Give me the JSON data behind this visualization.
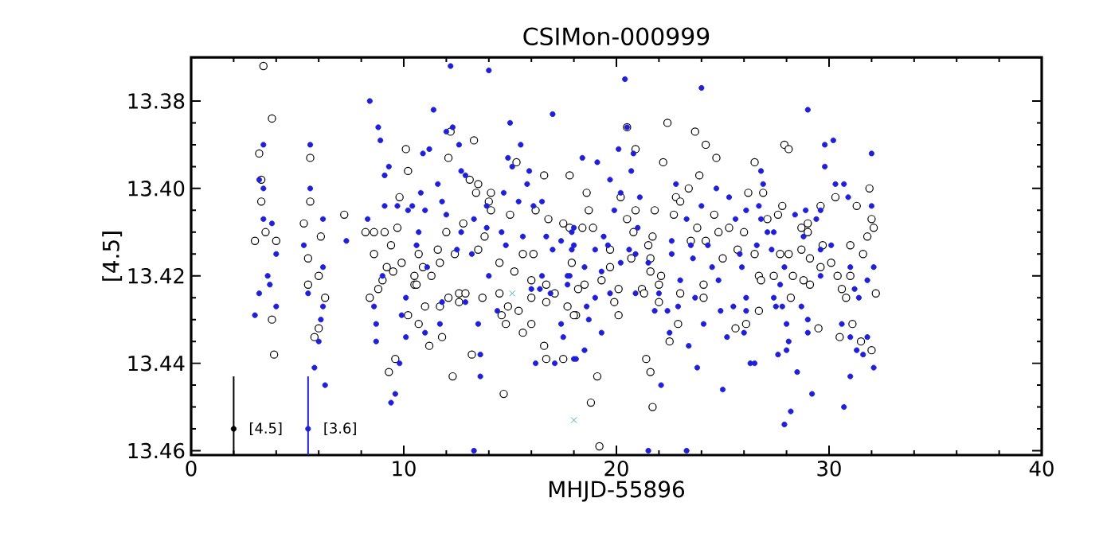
{
  "chart_data": {
    "type": "scatter",
    "title": "CSIMon-000999",
    "xlabel": "MHJD-55896",
    "ylabel": "[4.5]",
    "xlim": [
      0,
      40
    ],
    "ylim": [
      13.461,
      13.37
    ],
    "xticks": [
      0,
      10,
      20,
      30,
      40
    ],
    "yticks": [
      {
        "value": 13.38,
        "label": "13.38"
      },
      {
        "value": 13.4,
        "label": "13.40"
      },
      {
        "value": 13.42,
        "label": "13.42"
      },
      {
        "value": 13.44,
        "label": "13.44"
      },
      {
        "value": 13.46,
        "label": "13.46"
      }
    ],
    "marker": "circle",
    "grid": false,
    "legend": false,
    "series": [
      {
        "color": "#000000",
        "x": [
          3.4,
          3.8,
          3.2,
          3.3,
          3.3,
          5.6,
          5.6,
          5.3,
          3.5,
          3.0,
          4.0,
          6.1,
          5.5,
          6.0,
          5.5,
          6.3,
          3.8,
          6.0,
          5.8,
          3.9,
          7.2,
          10.1,
          10.2,
          9.8,
          8.2,
          8.6,
          9.1,
          9.7,
          8.6,
          9.4,
          9.2,
          9.9,
          9.5,
          9.0,
          10.5,
          8.4,
          8.8,
          10.2,
          10.7,
          9.6,
          9.3,
          12.2,
          13.3,
          12.1,
          13.1,
          13.5,
          13.4,
          14.1,
          14.0,
          14.1,
          15.0,
          15.3,
          16.6,
          17.8,
          16.2,
          16.8,
          17.5,
          12.8,
          12.0,
          13.8,
          10.7,
          11.6,
          12.4,
          13.5,
          14.5,
          11.7,
          10.9,
          11.3,
          10.5,
          15.6,
          16.1,
          15.2,
          16.0,
          16.7,
          10.6,
          12.6,
          12.9,
          13.7,
          12.1,
          12.6,
          11.0,
          11.7,
          14.5,
          14.9,
          16.0,
          16.7,
          17.1,
          17.7,
          18.1,
          15.4,
          14.6,
          14.8,
          16.0,
          15.6,
          11.8,
          11.2,
          13.2,
          16.6,
          16.7,
          17.5,
          12.3,
          14.7,
          20.5,
          22.4,
          23.7,
          24.2,
          24.7,
          20.9,
          22.2,
          23.9,
          23.4,
          18.6,
          20.2,
          22.8,
          23.0,
          18.7,
          20.9,
          21.8,
          22.7,
          24.6,
          20.5,
          18.4,
          18.9,
          20.8,
          23.8,
          25.3,
          24.8,
          17.8,
          21.7,
          23.5,
          24.2,
          21.5,
          19.7,
          20.7,
          21.6,
          25.0,
          17.9,
          19.7,
          21.6,
          22.1,
          18.5,
          24.1,
          19.3,
          20.1,
          21.2,
          22.0,
          18.2,
          21.3,
          23.0,
          24.1,
          19.9,
          22.0,
          18.0,
          20.1,
          25.6,
          22.9,
          22.5,
          21.4,
          19.1,
          21.6,
          18.8,
          21.7,
          19.2,
          27.9,
          28.1,
          26.5,
          26.2,
          26.9,
          27.8,
          27.6,
          30.3,
          29.6,
          31.3,
          31.9,
          32.0,
          32.1,
          31.8,
          31.6,
          31.0,
          29.0,
          28.7,
          29.0,
          26.0,
          27.1,
          25.7,
          26.5,
          27.7,
          28.1,
          28.7,
          29.7,
          29.1,
          29.6,
          30.1,
          30.4,
          31.0,
          26.7,
          26.8,
          27.4,
          28.3,
          28.8,
          29.1,
          30.6,
          30.8,
          32.2,
          28.2,
          26.7,
          26.1,
          31.1,
          29.5,
          30.5,
          31.5,
          32.0
        ],
        "values": [
          13.372,
          13.384,
          13.392,
          13.398,
          13.403,
          13.393,
          13.403,
          13.408,
          13.41,
          13.412,
          13.412,
          13.411,
          13.416,
          13.42,
          13.422,
          13.425,
          13.43,
          13.432,
          13.434,
          13.438,
          13.406,
          13.391,
          13.396,
          13.402,
          13.41,
          13.41,
          13.41,
          13.409,
          13.415,
          13.413,
          13.418,
          13.417,
          13.419,
          13.421,
          13.422,
          13.425,
          13.423,
          13.429,
          13.431,
          13.439,
          13.442,
          13.387,
          13.389,
          13.393,
          13.398,
          13.399,
          13.401,
          13.401,
          13.403,
          13.405,
          13.406,
          13.394,
          13.397,
          13.397,
          13.405,
          13.407,
          13.408,
          13.408,
          13.41,
          13.411,
          13.415,
          13.414,
          13.415,
          13.414,
          13.417,
          13.417,
          13.418,
          13.42,
          13.42,
          13.415,
          13.415,
          13.419,
          13.421,
          13.422,
          13.422,
          13.424,
          13.424,
          13.425,
          13.425,
          13.426,
          13.427,
          13.427,
          13.424,
          13.427,
          13.425,
          13.426,
          13.424,
          13.427,
          13.429,
          13.428,
          13.429,
          13.431,
          13.431,
          13.433,
          13.434,
          13.436,
          13.438,
          13.436,
          13.439,
          13.439,
          13.443,
          13.447,
          13.386,
          13.385,
          13.387,
          13.39,
          13.393,
          13.391,
          13.394,
          13.397,
          13.4,
          13.401,
          13.402,
          13.402,
          13.403,
          13.405,
          13.405,
          13.405,
          13.406,
          13.406,
          13.407,
          13.409,
          13.409,
          13.41,
          13.409,
          13.409,
          13.41,
          13.409,
          13.411,
          13.412,
          13.412,
          13.413,
          13.414,
          13.416,
          13.416,
          13.416,
          13.417,
          13.418,
          13.419,
          13.42,
          13.422,
          13.422,
          13.421,
          13.423,
          13.423,
          13.422,
          13.423,
          13.424,
          13.424,
          13.425,
          13.426,
          13.426,
          13.429,
          13.429,
          13.432,
          13.431,
          13.435,
          13.439,
          13.443,
          13.442,
          13.449,
          13.45,
          13.459,
          13.39,
          13.391,
          13.394,
          13.401,
          13.401,
          13.404,
          13.406,
          13.402,
          13.404,
          13.404,
          13.4,
          13.407,
          13.409,
          13.411,
          13.415,
          13.413,
          13.408,
          13.409,
          13.41,
          13.41,
          13.407,
          13.414,
          13.415,
          13.415,
          13.415,
          13.414,
          13.413,
          13.416,
          13.418,
          13.417,
          13.42,
          13.42,
          13.42,
          13.421,
          13.42,
          13.42,
          13.421,
          13.422,
          13.423,
          13.425,
          13.424,
          13.425,
          13.428,
          13.431,
          13.431,
          13.432,
          13.434,
          13.435,
          13.437
        ]
      },
      {
        "color": "#1f1fd8",
        "x": [
          3.4,
          3.2,
          3.4,
          3.4,
          3.8,
          4.0,
          3.6,
          3.7,
          3.2,
          4.0,
          3.0,
          5.6,
          5.6,
          6.2,
          5.3,
          6.2,
          5.5,
          6.1,
          6.2,
          6.0,
          5.8,
          6.3,
          7.3,
          8.4,
          8.8,
          8.9,
          9.3,
          9.1,
          9.1,
          9.7,
          10.2,
          8.3,
          9.0,
          8.6,
          8.7,
          8.7,
          10.1,
          9.9,
          10.1,
          9.8,
          9.6,
          9.4,
          12.2,
          14.0,
          11.4,
          15.0,
          17.0,
          12.3,
          12.0,
          12.6,
          11.2,
          10.9,
          14.9,
          15.5,
          15.1,
          15.9,
          12.7,
          12.9,
          11.6,
          10.8,
          14.7,
          15.8,
          11.8,
          10.4,
          11.0,
          12.0,
          13.9,
          15.4,
          16.1,
          16.5,
          13.3,
          13.9,
          10.7,
          12.7,
          14.6,
          18.0,
          16.7,
          15.6,
          10.6,
          12.5,
          13.2,
          14.8,
          17.4,
          17.0,
          17.9,
          11.1,
          14.0,
          16.5,
          17.7,
          16.0,
          16.4,
          16.9,
          17.7,
          11.8,
          12.9,
          14.4,
          11.0,
          11.7,
          13.5,
          17.4,
          17.5,
          13.6,
          16.2,
          17.1,
          18.0,
          13.6,
          13.3,
          20.4,
          24.0,
          20.5,
          20.1,
          20.8,
          18.4,
          19.1,
          20.7,
          19.7,
          20.2,
          21.1,
          22.8,
          24.7,
          25.3,
          24.0,
          19.9,
          23.3,
          25.6,
          17.9,
          19.4,
          19.6,
          21.0,
          22.6,
          18.0,
          19.0,
          20.6,
          20.9,
          23.5,
          24.3,
          18.5,
          20.2,
          21.5,
          22.6,
          23.6,
          24.5,
          17.8,
          19.3,
          23.0,
          24.8,
          19.0,
          19.7,
          20.9,
          22.0,
          23.7,
          18.6,
          18.7,
          21.8,
          22.4,
          22.9,
          24.9,
          25.5,
          24.1,
          25.2,
          19.3,
          22.5,
          18.5,
          18.1,
          23.4,
          23.8,
          22.1,
          25.0,
          21.5,
          23.3,
          29.0,
          29.8,
          30.2,
          32.0,
          29.8,
          26.8,
          26.9,
          30.7,
          30.3,
          30.9,
          32.0,
          26.1,
          26.7,
          29.6,
          28.9,
          26.8,
          28.4,
          27.1,
          27.4,
          28.8,
          29.4,
          25.8,
          26.6,
          27.3,
          30.1,
          29.6,
          32.1,
          25.9,
          27.9,
          31.0,
          29.6,
          31.8,
          27.7,
          31.2,
          31.4,
          27.4,
          26.1,
          27.5,
          27.8,
          28.7,
          26.1,
          29.0,
          28.0,
          29.0,
          30.6,
          26.0,
          31.0,
          31.8,
          28.1,
          31.3,
          28.0,
          31.6,
          27.6,
          26.3,
          26.5,
          32.1,
          28.5,
          31.0,
          29.2,
          30.7,
          28.2,
          27.9
        ],
        "values": [
          13.39,
          13.398,
          13.4,
          13.407,
          13.408,
          13.415,
          13.42,
          13.422,
          13.424,
          13.427,
          13.429,
          13.39,
          13.4,
          13.407,
          13.413,
          13.418,
          13.424,
          13.43,
          13.427,
          13.435,
          13.441,
          13.445,
          13.412,
          13.38,
          13.386,
          13.389,
          13.395,
          13.397,
          13.404,
          13.404,
          13.405,
          13.407,
          13.42,
          13.427,
          13.431,
          13.435,
          13.434,
          13.429,
          13.425,
          13.44,
          13.447,
          13.449,
          13.372,
          13.373,
          13.382,
          13.385,
          13.383,
          13.386,
          13.387,
          13.39,
          13.391,
          13.392,
          13.393,
          13.39,
          13.395,
          13.396,
          13.396,
          13.397,
          13.399,
          13.401,
          13.401,
          13.399,
          13.403,
          13.404,
          13.405,
          13.406,
          13.404,
          13.403,
          13.404,
          13.403,
          13.407,
          13.409,
          13.41,
          13.41,
          13.41,
          13.409,
          13.411,
          13.411,
          13.413,
          13.414,
          13.415,
          13.413,
          13.412,
          13.414,
          13.414,
          13.418,
          13.42,
          13.42,
          13.42,
          13.423,
          13.423,
          13.424,
          13.422,
          13.426,
          13.426,
          13.428,
          13.433,
          13.431,
          13.431,
          13.431,
          13.434,
          13.438,
          13.44,
          13.44,
          13.439,
          13.443,
          13.46,
          13.375,
          13.377,
          13.386,
          13.391,
          13.392,
          13.393,
          13.394,
          13.396,
          13.398,
          13.401,
          13.402,
          13.399,
          13.4,
          13.402,
          13.404,
          13.405,
          13.407,
          13.407,
          13.41,
          13.411,
          13.413,
          13.409,
          13.412,
          13.413,
          13.414,
          13.414,
          13.415,
          13.413,
          13.413,
          13.418,
          13.417,
          13.417,
          13.415,
          13.416,
          13.418,
          13.42,
          13.419,
          13.421,
          13.421,
          13.425,
          13.424,
          13.424,
          13.424,
          13.425,
          13.427,
          13.43,
          13.428,
          13.428,
          13.427,
          13.428,
          13.427,
          13.431,
          13.434,
          13.433,
          13.433,
          13.437,
          13.439,
          13.436,
          13.441,
          13.445,
          13.446,
          13.46,
          13.46,
          13.382,
          13.39,
          13.389,
          13.392,
          13.395,
          13.396,
          13.399,
          13.399,
          13.399,
          13.402,
          13.404,
          13.405,
          13.404,
          13.405,
          13.405,
          13.407,
          13.406,
          13.41,
          13.41,
          13.411,
          13.407,
          13.415,
          13.413,
          13.414,
          13.413,
          13.414,
          13.418,
          13.418,
          13.418,
          13.418,
          13.42,
          13.421,
          13.422,
          13.423,
          13.425,
          13.425,
          13.425,
          13.427,
          13.427,
          13.427,
          13.428,
          13.43,
          13.431,
          13.433,
          13.431,
          13.433,
          13.434,
          13.434,
          13.435,
          13.437,
          13.437,
          13.438,
          13.438,
          13.44,
          13.44,
          13.441,
          13.442,
          13.443,
          13.447,
          13.45,
          13.451,
          13.454
        ]
      },
      {
        "color": "#40b0c0",
        "marker": "cross",
        "x": [
          15.1,
          18.0
        ],
        "values": [
          13.424,
          13.453
        ]
      },
      {
        "name": "[4.5]",
        "color": "#000000",
        "x": [
          2.0
        ],
        "values": [
          13.455
        ],
        "errors": [
          [
            13.443,
            13.461
          ]
        ]
      },
      {
        "name": "[3.6]",
        "color": "#1f1fd8",
        "x": [
          5.5
        ],
        "values": [
          13.455
        ],
        "errors": [
          [
            13.443,
            13.461
          ]
        ]
      }
    ]
  }
}
